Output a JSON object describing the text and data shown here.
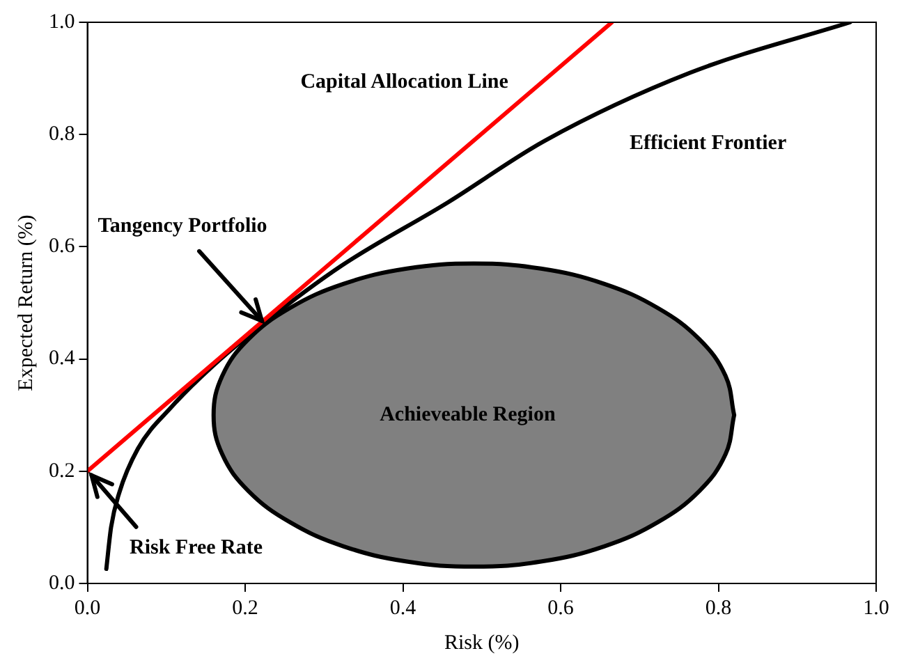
{
  "chart_data": {
    "type": "line",
    "xlabel": "Risk (%)",
    "ylabel": "Expected Return (%)",
    "xlim": [
      0,
      1
    ],
    "ylim": [
      0,
      1
    ],
    "xticks": [
      {
        "value": 0,
        "label": "0.0"
      },
      0.2,
      0.4,
      0.6,
      0.8,
      {
        "value": 1,
        "label": "1.0"
      }
    ],
    "yticks": [
      {
        "value": 0,
        "label": "0.0"
      },
      0.2,
      0.4,
      0.6,
      0.8,
      {
        "value": 1,
        "label": "1.0"
      }
    ],
    "grid": false,
    "legend": false,
    "marker": "none",
    "line_style": "solid",
    "series": [
      {
        "name": "Capital Allocation Line",
        "color": "#ff0000",
        "x": [
          0,
          0.665
        ],
        "values": [
          0.2,
          1.0
        ]
      },
      {
        "name": "Efficient Frontier",
        "color": "#000000",
        "x": [
          0.024,
          0.03,
          0.04,
          0.064,
          0.107,
          0.157,
          0.223,
          0.322,
          0.457,
          0.58,
          0.764,
          0.967
        ],
        "values": [
          0.026,
          0.1,
          0.16,
          0.24,
          0.315,
          0.385,
          0.463,
          0.566,
          0.679,
          0.789,
          0.91,
          1.0
        ]
      },
      {
        "name": "Achieveable Region",
        "type": "area",
        "color": "#808080",
        "x": [
          0.82,
          0.809,
          0.776,
          0.723,
          0.655,
          0.575,
          0.49,
          0.405,
          0.325,
          0.257,
          0.204,
          0.171,
          0.16,
          0.171,
          0.204,
          0.257,
          0.325,
          0.405,
          0.49,
          0.575,
          0.655,
          0.723,
          0.776,
          0.809,
          0.82
        ],
        "values": [
          0.3,
          0.37,
          0.435,
          0.491,
          0.534,
          0.561,
          0.57,
          0.561,
          0.534,
          0.491,
          0.435,
          0.37,
          0.3,
          0.23,
          0.165,
          0.109,
          0.066,
          0.039,
          0.03,
          0.039,
          0.066,
          0.109,
          0.165,
          0.23,
          0.3
        ]
      }
    ],
    "annotations": [
      {
        "text": "Tangency Portfolio",
        "x": 0.223,
        "y": 0.463
      },
      {
        "text": "Risk Free Rate",
        "x": 0,
        "y": 0.2
      }
    ]
  }
}
